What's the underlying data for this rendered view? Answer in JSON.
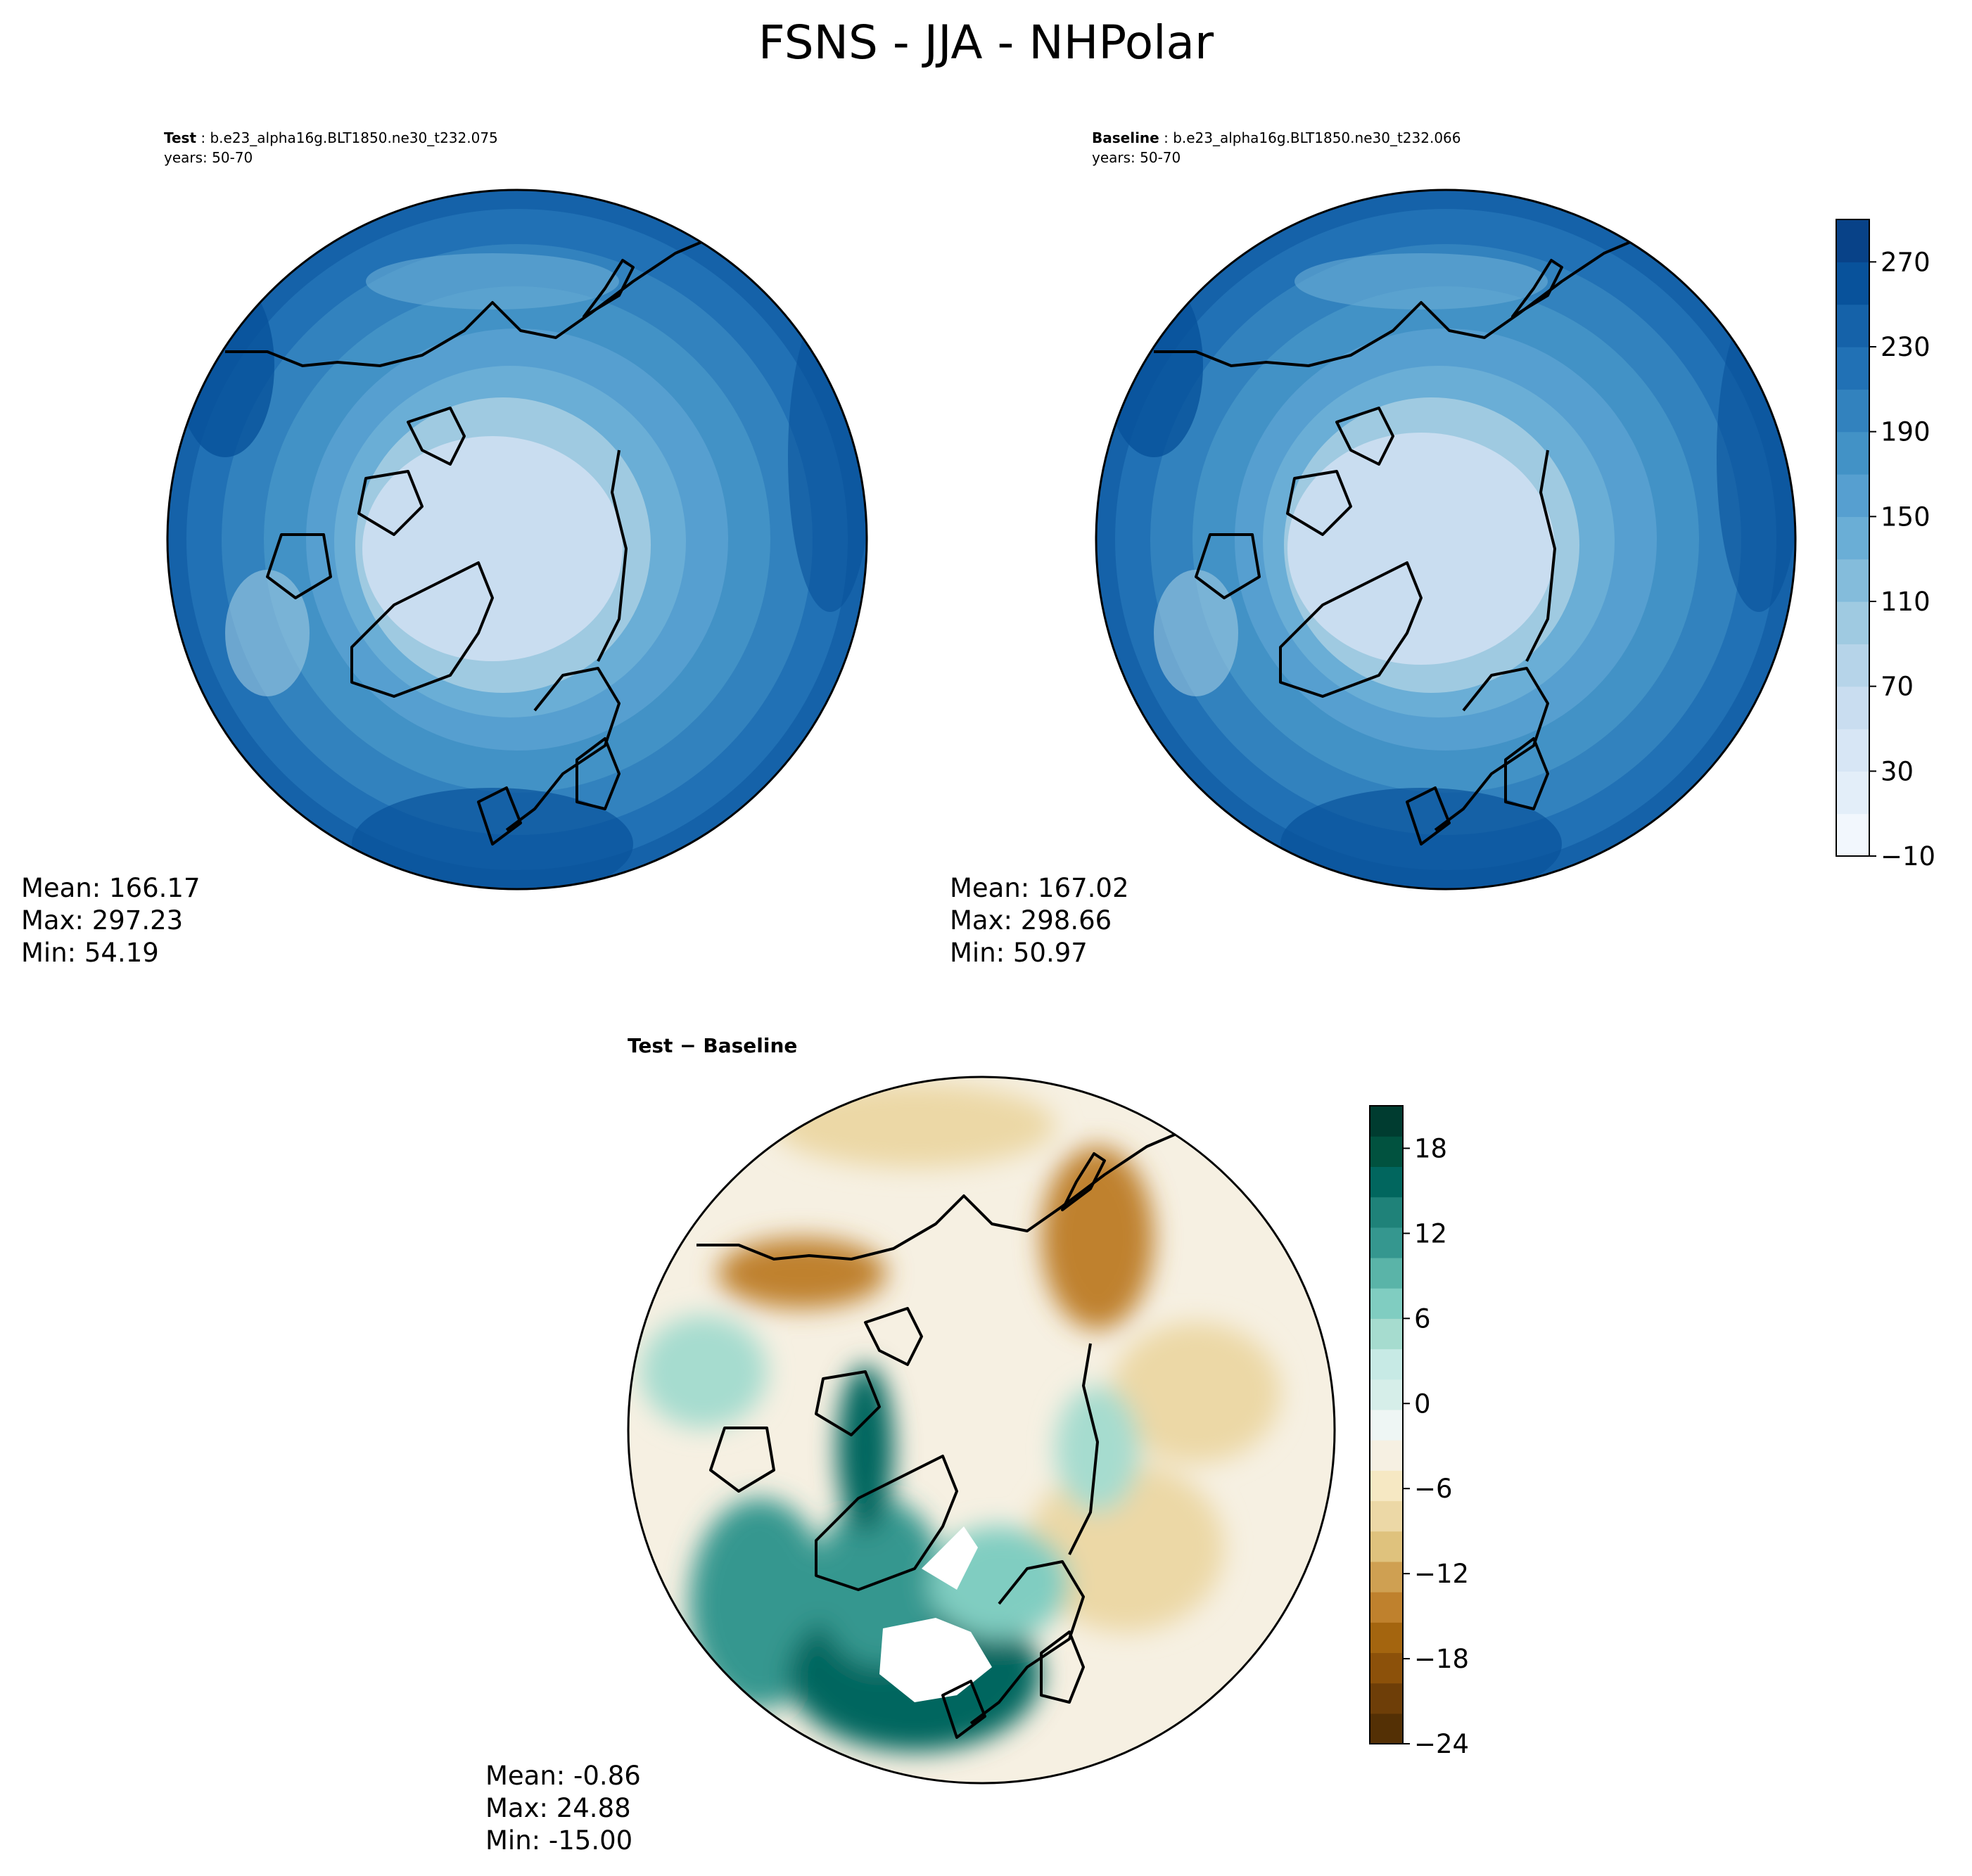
{
  "title": "FSNS - JJA - NHPolar",
  "panels": [
    {
      "id": "test",
      "label": "Test",
      "case": " : b.e23_alpha16g.BLT1850.ne30_t232.075",
      "years": "years: 50-70",
      "stats": {
        "mean": "Mean: 166.17",
        "max": "Max: 297.23",
        "min": "Min: 54.19"
      }
    },
    {
      "id": "baseline",
      "label": "Baseline",
      "case": " : b.e23_alpha16g.BLT1850.ne30_t232.066",
      "years": "years: 50-70",
      "stats": {
        "mean": "Mean: 167.02",
        "max": "Max: 298.66",
        "min": "Min: 50.97"
      }
    },
    {
      "id": "diff",
      "label": "Test − Baseline",
      "stats": {
        "mean": "Mean: -0.86",
        "max": "Max: 24.88",
        "min": "Min: -15.00"
      }
    }
  ],
  "colorbars": {
    "main": {
      "min": -10,
      "max": 290,
      "ticks": [
        "−10",
        "30",
        "70",
        "110",
        "150",
        "190",
        "230",
        "270"
      ],
      "tick_values": [
        -10,
        30,
        70,
        110,
        150,
        190,
        230,
        270
      ],
      "colors": [
        "#f2f7fd",
        "#e3eef9",
        "#d7e6f5",
        "#c9ddf0",
        "#b6d4e9",
        "#9fcae1",
        "#84bcdb",
        "#6aaed6",
        "#569fd0",
        "#4292c6",
        "#3282be",
        "#2171b5",
        "#1562a9",
        "#08529b",
        "#084288"
      ]
    },
    "diff": {
      "min": -24,
      "max": 21,
      "ticks": [
        "−24",
        "−18",
        "−12",
        "−6",
        "0",
        "6",
        "12",
        "18"
      ],
      "tick_values": [
        -24,
        -18,
        -12,
        -6,
        0,
        6,
        12,
        18
      ],
      "colors": [
        "#543005",
        "#6e3e08",
        "#8c510a",
        "#a4650f",
        "#bf812d",
        "#cfa052",
        "#dfc27d",
        "#ecd8a6",
        "#f6e8c3",
        "#f6f0e2",
        "#eef6f4",
        "#d6eee9",
        "#c7eae5",
        "#a6dccf",
        "#80cdc1",
        "#5ab4a8",
        "#35978f",
        "#1f8279",
        "#01665e",
        "#01523f",
        "#003c30"
      ]
    }
  }
}
